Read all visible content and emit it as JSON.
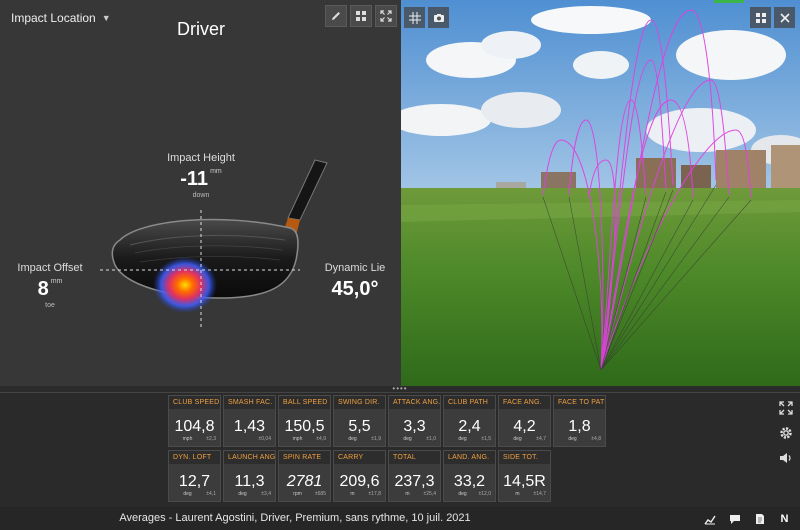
{
  "impact": {
    "dropdown_label": "Impact Location",
    "club": "Driver",
    "height": {
      "label": "Impact Height",
      "value": "-11",
      "unit": "mm",
      "sub": "down"
    },
    "offset": {
      "label": "Impact Offset",
      "value": "8",
      "unit": "mm",
      "sub": "toe"
    },
    "lie": {
      "label": "Dynamic Lie",
      "value": "45,0°"
    }
  },
  "toolbar_icons": [
    "pencil-icon",
    "grid-icon",
    "fullscreen-icon"
  ],
  "sim_toolbar_icons": [
    "grid-overlay-icon",
    "camera-icon",
    "layout-icon",
    "close-icon"
  ],
  "colors": {
    "accent_label": "#f0a040",
    "trajectory": "#e040e0",
    "tile_bg": "#3c3c3c"
  },
  "tiles_row1": [
    {
      "label": "CLUB SPEED",
      "value": "104,8",
      "unit": "mph",
      "sd": "±2,3"
    },
    {
      "label": "SMASH FAC.",
      "value": "1,43",
      "unit": "",
      "sd": "±0,04"
    },
    {
      "label": "BALL SPEED",
      "value": "150,5",
      "unit": "mph",
      "sd": "±4,9"
    },
    {
      "label": "SWING DIR.",
      "value": "5,5",
      "unit": "deg",
      "sd": "±1,9"
    },
    {
      "label": "ATTACK ANG.",
      "value": "3,3",
      "unit": "deg",
      "sd": "±1,0"
    },
    {
      "label": "CLUB PATH",
      "value": "2,4",
      "unit": "deg",
      "sd": "±1,5"
    },
    {
      "label": "FACE ANG.",
      "value": "4,2",
      "unit": "deg",
      "sd": "±4,7"
    },
    {
      "label": "FACE TO PATH",
      "value": "1,8",
      "unit": "deg",
      "sd": "±4,8"
    }
  ],
  "tiles_row2": [
    {
      "label": "DYN. LOFT",
      "value": "12,7",
      "unit": "deg",
      "sd": "±4,1"
    },
    {
      "label": "LAUNCH ANG.",
      "value": "11,3",
      "unit": "deg",
      "sd": "±3,4"
    },
    {
      "label": "SPIN RATE",
      "value": "2781",
      "unit": "rpm",
      "sd": "±685"
    },
    {
      "label": "CARRY",
      "value": "209,6",
      "unit": "m",
      "sd": "±17,8"
    },
    {
      "label": "TOTAL",
      "value": "237,3",
      "unit": "m",
      "sd": "±25,4"
    },
    {
      "label": "LAND. ANG.",
      "value": "33,2",
      "unit": "deg",
      "sd": "±12,0"
    },
    {
      "label": "SIDE TOT.",
      "value": "14,5R",
      "unit": "m",
      "sd": "±14,7"
    }
  ],
  "side_icons": [
    "expand-icon",
    "settings-icon",
    "volume-icon"
  ],
  "status": {
    "text": "Averages - Laurent Agostini, Driver, Premium, sans rythme, 10 juil. 2021",
    "icons": [
      "chart-icon",
      "chat-icon",
      "document-icon"
    ],
    "n_label": "N"
  }
}
